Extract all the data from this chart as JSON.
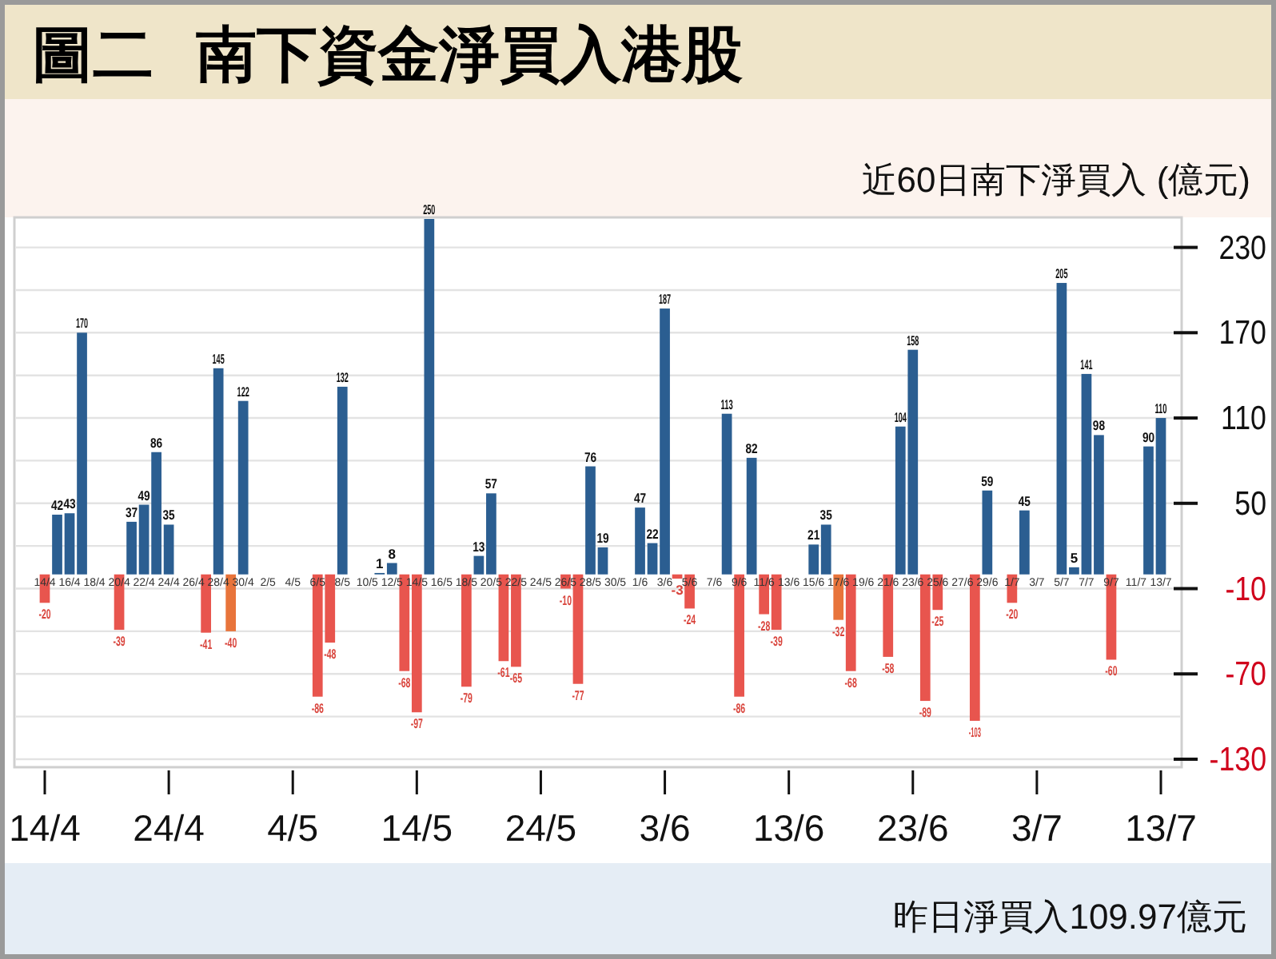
{
  "chart_data": {
    "type": "bar",
    "title": "圖二  南下資金淨買入港股",
    "subtitle": "近60日南下淨買入 (億元)",
    "x": [
      "--04-14",
      "--04-15",
      "--04-16",
      "--04-17",
      "--04-20",
      "--04-21",
      "--04-22",
      "--04-23",
      "--04-24",
      "--04-27",
      "--04-28",
      "--04-29",
      "--04-30",
      "--05-06",
      "--05-07",
      "--05-08",
      "--05-11",
      "--05-12",
      "--05-13",
      "--05-14",
      "--05-15",
      "--05-18",
      "--05-19",
      "--05-20",
      "--05-21",
      "--05-22",
      "--05-26",
      "--05-27",
      "--05-28",
      "--05-29",
      "--06-01",
      "--06-02",
      "--06-03",
      "--06-04",
      "--06-05",
      "--06-08",
      "--06-09",
      "--06-10",
      "--06-11",
      "--06-12",
      "--06-15",
      "--06-16",
      "--06-17",
      "--06-18",
      "--06-21",
      "--06-22",
      "--06-23",
      "--06-24",
      "--06-25",
      "--06-28",
      "--06-29",
      "--07-01",
      "--07-02",
      "--07-05",
      "--07-06",
      "--07-07",
      "--07-08",
      "--07-09",
      "--07-12",
      "--07-13"
    ],
    "values": [
      -20,
      42,
      43,
      170,
      -39,
      37,
      49,
      86,
      35,
      -41,
      145,
      -40,
      122,
      -86,
      -48,
      132,
      1,
      8,
      -68,
      -97,
      250,
      -79,
      13,
      57,
      -61,
      -65,
      -10,
      -77,
      76,
      19,
      47,
      22,
      187,
      -3,
      -24,
      113,
      -86,
      82,
      -28,
      -39,
      21,
      35,
      -32,
      -68,
      -58,
      104,
      158,
      -89,
      -25,
      -103,
      59,
      -20,
      45,
      205,
      5,
      141,
      98,
      -60,
      90,
      110
    ],
    "colors": [
      "#e8554e",
      "#2b5e91",
      "#2b5e91",
      "#2b5e91",
      "#e8554e",
      "#2b5e91",
      "#2b5e91",
      "#2b5e91",
      "#2b5e91",
      "#e8554e",
      "#2b5e91",
      "#e8743b",
      "#2b5e91",
      "#e8554e",
      "#e8554e",
      "#2b5e91",
      "#2b5e91",
      "#2b5e91",
      "#e8554e",
      "#e8554e",
      "#2b5e91",
      "#e8554e",
      "#2b5e91",
      "#2b5e91",
      "#e8554e",
      "#e8554e",
      "#e8554e",
      "#e8554e",
      "#2b5e91",
      "#2b5e91",
      "#2b5e91",
      "#2b5e91",
      "#2b5e91",
      "#e8554e",
      "#e8554e",
      "#2b5e91",
      "#e8554e",
      "#2b5e91",
      "#e8554e",
      "#e8554e",
      "#2b5e91",
      "#2b5e91",
      "#e8743b",
      "#e8554e",
      "#e8554e",
      "#2b5e91",
      "#2b5e91",
      "#e8554e",
      "#e8554e",
      "#e8554e",
      "#2b5e91",
      "#e8554e",
      "#2b5e91",
      "#2b5e91",
      "#2b5e91",
      "#2b5e91",
      "#2b5e91",
      "#e8554e",
      "#2b5e91",
      "#2b5e91"
    ],
    "xlim": [
      "--04-14",
      "--07-13"
    ],
    "xticks": [
      {
        "value": "--04-14",
        "label": "14/4"
      },
      {
        "value": "--04-24",
        "label": "24/4"
      },
      {
        "value": "--05-04",
        "label": "4/5"
      },
      {
        "value": "--05-14",
        "label": "14/5"
      },
      {
        "value": "--05-24",
        "label": "24/5"
      },
      {
        "value": "--06-03",
        "label": "3/6"
      },
      {
        "value": "--06-13",
        "label": "13/6"
      },
      {
        "value": "--06-23",
        "label": "23/6"
      },
      {
        "value": "--07-03",
        "label": "3/7"
      },
      {
        "value": "--07-13",
        "label": "13/7"
      }
    ],
    "x2lim": [
      "--04-14",
      "--07-13"
    ],
    "x2ticks": [
      {
        "value": "--04-14",
        "label": "14/4"
      },
      {
        "value": "--04-16",
        "label": "16/4"
      },
      {
        "value": "--04-18",
        "label": "18/4"
      },
      {
        "value": "--04-20",
        "label": "20/4"
      },
      {
        "value": "--04-22",
        "label": "22/4"
      },
      {
        "value": "--04-24",
        "label": "24/4"
      },
      {
        "value": "--04-26",
        "label": "26/4"
      },
      {
        "value": "--04-28",
        "label": "28/4"
      },
      {
        "value": "--04-30",
        "label": "30/4"
      },
      {
        "value": "--05-02",
        "label": "2/5"
      },
      {
        "value": "--05-04",
        "label": "4/5"
      },
      {
        "value": "--05-06",
        "label": "6/5"
      },
      {
        "value": "--05-08",
        "label": "8/5"
      },
      {
        "value": "--05-10",
        "label": "10/5"
      },
      {
        "value": "--05-12",
        "label": "12/5"
      },
      {
        "value": "--05-14",
        "label": "14/5"
      },
      {
        "value": "--05-16",
        "label": "16/5"
      },
      {
        "value": "--05-18",
        "label": "18/5"
      },
      {
        "value": "--05-20",
        "label": "20/5"
      },
      {
        "value": "--05-22",
        "label": "22/5"
      },
      {
        "value": "--05-24",
        "label": "24/5"
      },
      {
        "value": "--05-26",
        "label": "26/5"
      },
      {
        "value": "--05-28",
        "label": "28/5"
      },
      {
        "value": "--05-30",
        "label": "30/5"
      },
      {
        "value": "--06-01",
        "label": "1/6"
      },
      {
        "value": "--06-03",
        "label": "3/6"
      },
      {
        "value": "--06-05",
        "label": "5/6"
      },
      {
        "value": "--06-07",
        "label": "7/6"
      },
      {
        "value": "--06-09",
        "label": "9/6"
      },
      {
        "value": "--06-11",
        "label": "11/6"
      },
      {
        "value": "--06-13",
        "label": "13/6"
      },
      {
        "value": "--06-15",
        "label": "15/6"
      },
      {
        "value": "--06-17",
        "label": "17/6"
      },
      {
        "value": "--06-19",
        "label": "19/6"
      },
      {
        "value": "--06-21",
        "label": "21/6"
      },
      {
        "value": "--06-23",
        "label": "23/6"
      },
      {
        "value": "--06-25",
        "label": "25/6"
      },
      {
        "value": "--06-27",
        "label": "27/6"
      },
      {
        "value": "--06-29",
        "label": "29/6"
      },
      {
        "value": "--07-01",
        "label": "1/7"
      },
      {
        "value": "--07-03",
        "label": "3/7"
      },
      {
        "value": "--07-05",
        "label": "5/7"
      },
      {
        "value": "--07-07",
        "label": "7/7"
      },
      {
        "value": "--07-09",
        "label": "9/7"
      },
      {
        "value": "--07-11",
        "label": "11/7"
      },
      {
        "value": "--07-13",
        "label": "13/7"
      }
    ],
    "ylim": [
      -130,
      250
    ],
    "yticks": [
      -130,
      -70,
      -10,
      50,
      110,
      170,
      230
    ],
    "grid": true,
    "data_labels": true,
    "annotations": [
      "昨日淨買入109.97億元"
    ]
  }
}
